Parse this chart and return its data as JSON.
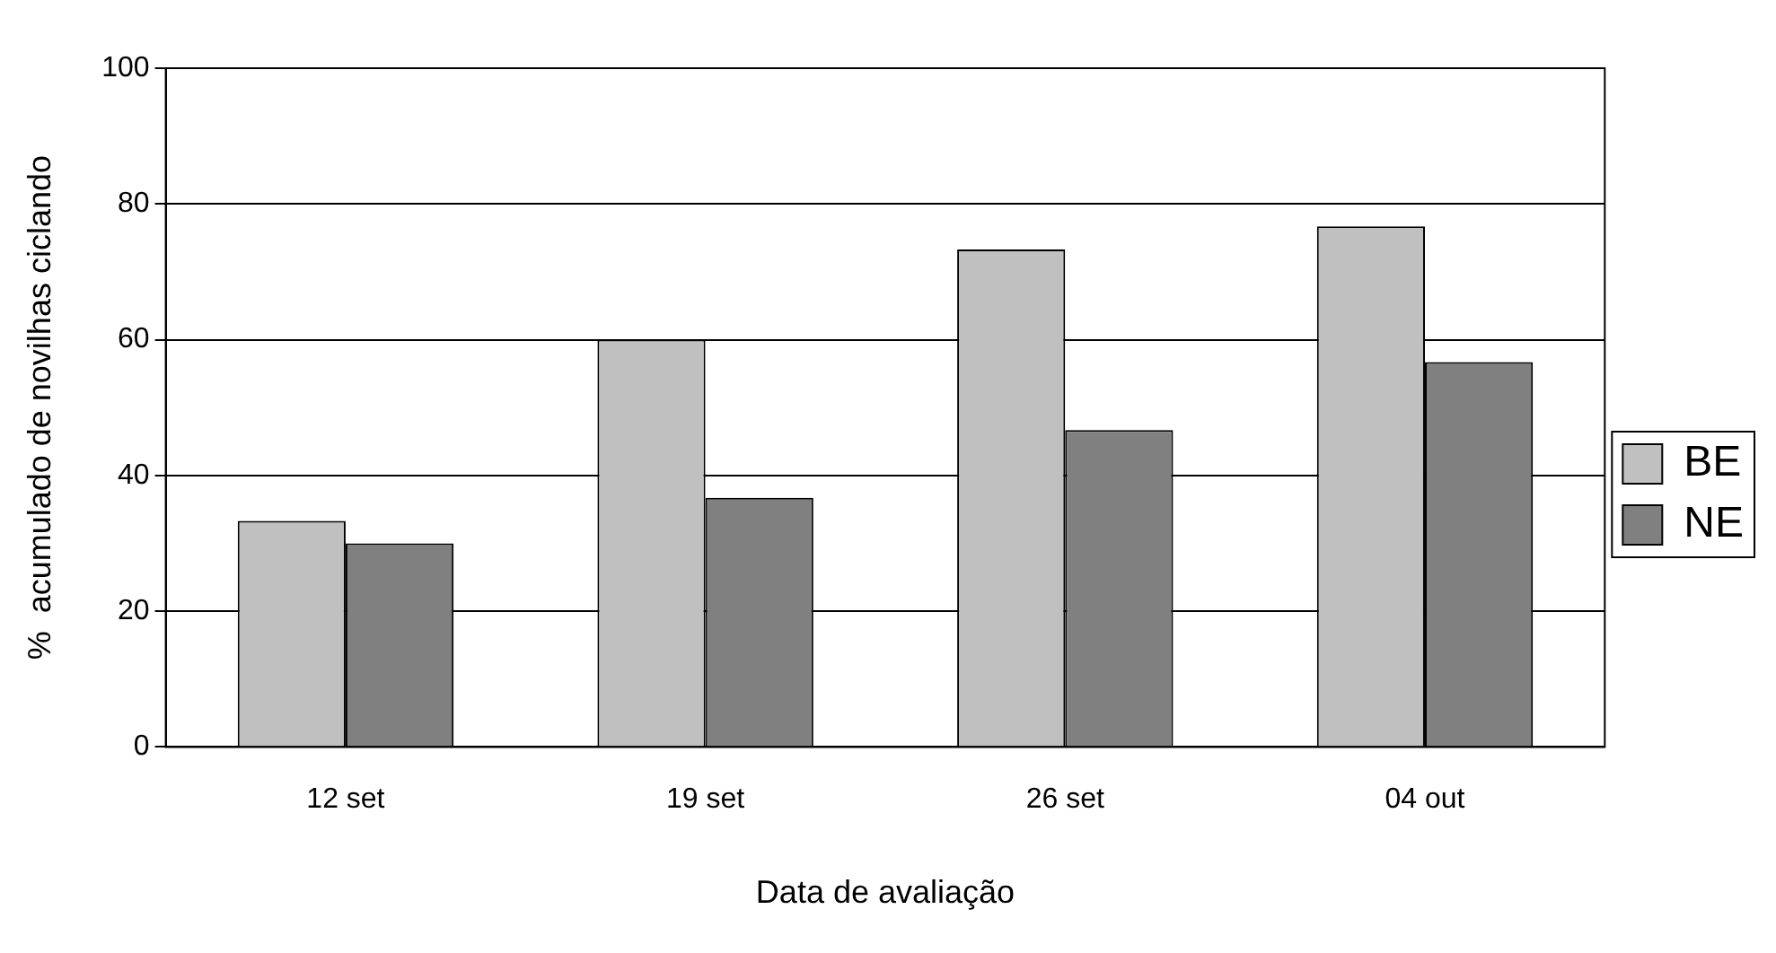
{
  "chart_data": {
    "type": "bar",
    "xlabel": "Data de avaliação",
    "ylabel": "%  acumulado de novilhas ciclando",
    "categories": [
      "12 set",
      "19 set",
      "26 set",
      "04 out"
    ],
    "series": [
      {
        "name": "BE",
        "color": "#c0c0c0",
        "values": [
          33.3,
          60,
          73.3,
          76.7
        ]
      },
      {
        "name": "NE",
        "color": "#808080",
        "values": [
          30,
          36.7,
          46.7,
          56.7
        ]
      }
    ],
    "ylim": [
      0,
      100
    ],
    "yticks": [
      0,
      20,
      40,
      60,
      80,
      100
    ],
    "grid": "y",
    "legend": "right"
  }
}
